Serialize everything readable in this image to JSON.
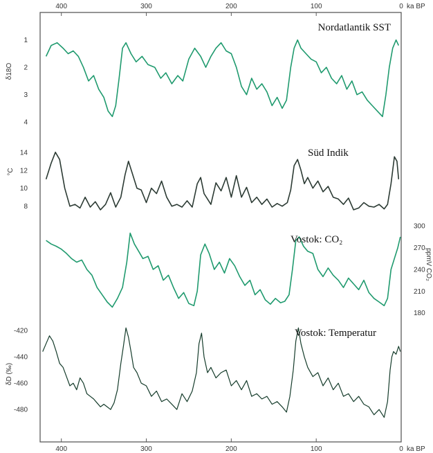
{
  "chart_data": {
    "type": "line",
    "x_axis": {
      "label": "ka BP",
      "ticks": [
        "400",
        "300",
        "200",
        "100",
        "0"
      ],
      "tick_values": [
        400,
        300,
        200,
        100,
        0
      ],
      "range": [
        425,
        0
      ],
      "position": "top and bottom"
    },
    "grid": false,
    "legend": "none (series titled inline)",
    "colors": {
      "green": "#1f9a6e",
      "dark": "#2b3a33",
      "darkgreen": "#143b2a",
      "frame": "#5a5a5a"
    },
    "series": [
      {
        "name": "Nordatlantik SST",
        "y_label": "δ18O",
        "y_ticks": [
          "1",
          "2",
          "3",
          "4"
        ],
        "y_tick_values": [
          1,
          2,
          3,
          4
        ],
        "y_range": [
          0.5,
          4.3
        ],
        "inverted": true,
        "axis_side": "left",
        "color": "green",
        "x": [
          418,
          412,
          405,
          398,
          392,
          386,
          380,
          374,
          368,
          362,
          356,
          350,
          345,
          340,
          336,
          332,
          328,
          324,
          318,
          312,
          305,
          298,
          290,
          283,
          277,
          270,
          263,
          257,
          250,
          243,
          236,
          230,
          224,
          218,
          212,
          206,
          200,
          194,
          188,
          182,
          176,
          170,
          164,
          158,
          152,
          146,
          140,
          135,
          130,
          126,
          122,
          118,
          112,
          106,
          100,
          94,
          88,
          82,
          76,
          70,
          64,
          58,
          52,
          46,
          40,
          34,
          28,
          22,
          18,
          14,
          10,
          6,
          3
        ],
        "values": [
          1.6,
          1.2,
          1.1,
          1.3,
          1.5,
          1.4,
          1.6,
          2.0,
          2.5,
          2.3,
          2.8,
          3.1,
          3.6,
          3.8,
          3.4,
          2.4,
          1.3,
          1.1,
          1.5,
          1.8,
          1.6,
          1.9,
          2.0,
          2.4,
          2.2,
          2.6,
          2.3,
          2.5,
          1.7,
          1.3,
          1.6,
          2.0,
          1.6,
          1.3,
          1.1,
          1.4,
          1.5,
          2.0,
          2.7,
          3.0,
          2.4,
          2.8,
          2.6,
          2.9,
          3.4,
          3.1,
          3.5,
          3.2,
          2.0,
          1.3,
          1.0,
          1.3,
          1.5,
          1.7,
          1.8,
          2.2,
          2.0,
          2.4,
          2.6,
          2.3,
          2.8,
          2.5,
          3.0,
          2.9,
          3.2,
          3.4,
          3.6,
          3.8,
          3.0,
          2.0,
          1.3,
          1.0,
          1.2
        ]
      },
      {
        "name": "Süd Indik",
        "y_label": "°C",
        "y_ticks": [
          "14",
          "12",
          "10",
          "8"
        ],
        "y_tick_values": [
          14,
          12,
          10,
          8
        ],
        "y_range": [
          6.9,
          14.6
        ],
        "inverted": false,
        "axis_side": "left",
        "color": "dark",
        "x": [
          418,
          412,
          407,
          402,
          396,
          390,
          384,
          378,
          372,
          366,
          360,
          354,
          348,
          342,
          336,
          330,
          325,
          321,
          316,
          311,
          306,
          300,
          294,
          288,
          282,
          276,
          270,
          264,
          258,
          252,
          246,
          240,
          236,
          232,
          228,
          224,
          218,
          212,
          206,
          200,
          194,
          188,
          182,
          176,
          170,
          164,
          158,
          152,
          146,
          140,
          134,
          130,
          126,
          122,
          118,
          114,
          110,
          104,
          98,
          92,
          86,
          80,
          74,
          68,
          62,
          56,
          50,
          44,
          38,
          32,
          26,
          20,
          16,
          12,
          8,
          5,
          3
        ],
        "values": [
          11.0,
          12.8,
          14.0,
          13.2,
          10.0,
          8.0,
          8.2,
          7.8,
          9.0,
          7.9,
          8.5,
          7.6,
          8.2,
          9.5,
          7.9,
          9.0,
          11.5,
          13.0,
          11.5,
          10.0,
          9.8,
          8.4,
          10.0,
          9.4,
          10.8,
          9.0,
          8.0,
          8.2,
          7.9,
          8.6,
          7.9,
          10.5,
          11.2,
          9.4,
          8.8,
          8.2,
          10.6,
          9.7,
          11.2,
          9.0,
          11.4,
          9.0,
          10.1,
          8.4,
          9.0,
          8.2,
          8.8,
          7.9,
          8.3,
          8.0,
          8.4,
          9.8,
          12.5,
          13.2,
          12.0,
          10.5,
          11.2,
          10.0,
          10.8,
          9.6,
          10.2,
          9.0,
          8.8,
          8.2,
          8.9,
          7.6,
          7.8,
          8.4,
          8.0,
          7.9,
          8.2,
          7.7,
          8.2,
          10.5,
          13.5,
          13.0,
          11.0
        ]
      },
      {
        "name": "Vostok: CO₂",
        "y_label": "ppmV CO₂",
        "y_ticks": [
          "300",
          "270",
          "240",
          "210",
          "180"
        ],
        "y_tick_values": [
          300,
          270,
          240,
          210,
          180
        ],
        "y_range": [
          174,
          304
        ],
        "inverted": false,
        "axis_side": "right",
        "color": "green",
        "x": [
          418,
          412,
          406,
          400,
          394,
          388,
          382,
          376,
          370,
          364,
          358,
          352,
          346,
          340,
          334,
          328,
          323,
          319,
          314,
          309,
          304,
          298,
          292,
          286,
          280,
          274,
          268,
          262,
          256,
          250,
          244,
          240,
          236,
          231,
          226,
          220,
          214,
          208,
          202,
          196,
          190,
          184,
          178,
          172,
          166,
          160,
          154,
          148,
          142,
          137,
          132,
          128,
          124,
          120,
          115,
          110,
          104,
          98,
          92,
          86,
          80,
          74,
          68,
          62,
          56,
          50,
          44,
          38,
          32,
          26,
          20,
          16,
          12,
          8,
          4,
          1
        ],
        "values": [
          280,
          275,
          272,
          268,
          262,
          255,
          250,
          253,
          240,
          232,
          215,
          205,
          195,
          188,
          200,
          215,
          250,
          290,
          275,
          265,
          255,
          258,
          240,
          245,
          225,
          232,
          215,
          200,
          208,
          193,
          190,
          210,
          260,
          275,
          262,
          240,
          250,
          235,
          255,
          245,
          230,
          218,
          225,
          205,
          212,
          198,
          192,
          200,
          194,
          196,
          205,
          240,
          280,
          285,
          272,
          265,
          262,
          240,
          230,
          242,
          232,
          225,
          215,
          228,
          220,
          212,
          225,
          208,
          200,
          195,
          190,
          200,
          240,
          255,
          270,
          285
        ]
      },
      {
        "name": "Vostok: Temperatur",
        "y_label": "δD (‰)",
        "y_ticks": [
          "-420",
          "-440",
          "-460",
          "-480"
        ],
        "y_tick_values": [
          -420,
          -440,
          -460,
          -480
        ],
        "y_range": [
          -492,
          -412
        ],
        "inverted": false,
        "axis_side": "left",
        "color": "darkgreen",
        "x": [
          422,
          418,
          414,
          410,
          406,
          402,
          398,
          394,
          390,
          386,
          382,
          378,
          374,
          370,
          366,
          362,
          358,
          354,
          350,
          346,
          342,
          338,
          334,
          330,
          327,
          324,
          321,
          318,
          315,
          311,
          306,
          300,
          294,
          288,
          282,
          276,
          270,
          264,
          258,
          252,
          246,
          241,
          238,
          235,
          232,
          228,
          224,
          218,
          212,
          206,
          200,
          194,
          188,
          182,
          176,
          170,
          164,
          158,
          152,
          146,
          140,
          135,
          131,
          127,
          124,
          121,
          118,
          114,
          110,
          104,
          98,
          92,
          86,
          80,
          74,
          68,
          62,
          56,
          50,
          44,
          38,
          32,
          26,
          20,
          16,
          13,
          11,
          9,
          6,
          3,
          1
        ],
        "values": [
          -436,
          -430,
          -424,
          -428,
          -436,
          -445,
          -448,
          -455,
          -462,
          -460,
          -465,
          -456,
          -460,
          -468,
          -470,
          -472,
          -475,
          -478,
          -476,
          -478,
          -480,
          -475,
          -465,
          -445,
          -432,
          -418,
          -425,
          -436,
          -448,
          -452,
          -460,
          -462,
          -470,
          -466,
          -474,
          -472,
          -476,
          -480,
          -468,
          -474,
          -466,
          -452,
          -430,
          -422,
          -440,
          -452,
          -448,
          -456,
          -452,
          -450,
          -462,
          -458,
          -465,
          -458,
          -470,
          -468,
          -472,
          -470,
          -476,
          -474,
          -478,
          -482,
          -470,
          -450,
          -428,
          -418,
          -430,
          -440,
          -448,
          -455,
          -452,
          -462,
          -456,
          -465,
          -460,
          -470,
          -468,
          -474,
          -470,
          -476,
          -478,
          -484,
          -480,
          -486,
          -474,
          -450,
          -440,
          -436,
          -438,
          -432,
          -436
        ]
      }
    ]
  }
}
